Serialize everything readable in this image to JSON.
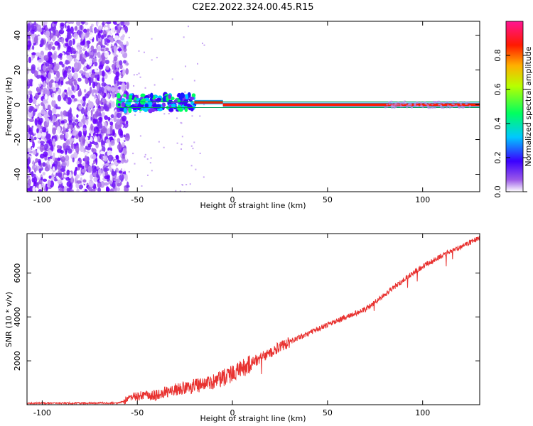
{
  "title": "C2E2.2022.324.00.45.R15",
  "chart_data": [
    {
      "type": "heatmap",
      "title": "C2E2.2022.324.00.45.R15",
      "xlabel": "Height of straight line (km)",
      "ylabel": "Frequency (Hz)",
      "xlim": [
        -108,
        130
      ],
      "ylim": [
        -50,
        48
      ],
      "xticks": [
        -100,
        -50,
        0,
        50,
        100
      ],
      "yticks": [
        -40,
        -20,
        0,
        20,
        40
      ],
      "xtick_labels": [
        "-100",
        "-50",
        "0",
        "50",
        "100"
      ],
      "ytick_labels": [
        "-40",
        "-20",
        "0",
        "20",
        "40"
      ],
      "colorbar": {
        "label": "Normalized spectral amplitude",
        "range": [
          0,
          1
        ],
        "ticks": [
          0.0,
          0.2,
          0.4,
          0.6,
          0.8
        ],
        "tick_labels": [
          "0.0",
          "0.2",
          "0.4",
          "0.6",
          "0.8"
        ],
        "colormap": [
          "#ffffff",
          "#8a2be2",
          "#0000ff",
          "#00ffff",
          "#00ff00",
          "#ffff00",
          "#ff8000",
          "#ff0000",
          "#ff1493"
        ]
      },
      "noise_region_x": [
        -108,
        -55
      ],
      "signal_line": {
        "x_start": -60,
        "x_end": 130,
        "frequency": 0,
        "segments": [
          {
            "x": [
              -60,
              -20
            ],
            "freq": 1.2,
            "amplitude": 0.5
          },
          {
            "x": [
              -20,
              -5
            ],
            "freq": 1.5,
            "amplitude": 0.85
          },
          {
            "x": [
              -5,
              130
            ],
            "freq": 0,
            "amplitude": 0.9
          }
        ]
      }
    },
    {
      "type": "line",
      "title": "",
      "xlabel": "Height of straight line (km)",
      "ylabel": "SNR (10 * v/v)",
      "xlim": [
        -108,
        130
      ],
      "ylim": [
        0,
        7800
      ],
      "xticks": [
        -100,
        -50,
        0,
        50,
        100
      ],
      "yticks": [
        2000,
        4000,
        6000
      ],
      "xtick_labels": [
        "-100",
        "-50",
        "0",
        "50",
        "100"
      ],
      "ytick_labels": [
        "2000",
        "4000",
        "6000"
      ],
      "series": [
        {
          "color": "#e8312f",
          "x": [
            -108,
            -80,
            -60,
            -57,
            -55,
            -50,
            -40,
            -30,
            -20,
            -10,
            0,
            10,
            20,
            30,
            40,
            50,
            60,
            70,
            80,
            90,
            100,
            110,
            120,
            130
          ],
          "y": [
            60,
            70,
            80,
            150,
            300,
            400,
            450,
            700,
            850,
            1050,
            1400,
            1900,
            2400,
            2850,
            3250,
            3650,
            4000,
            4350,
            5000,
            5700,
            6300,
            6800,
            7200,
            7600
          ]
        }
      ]
    }
  ]
}
